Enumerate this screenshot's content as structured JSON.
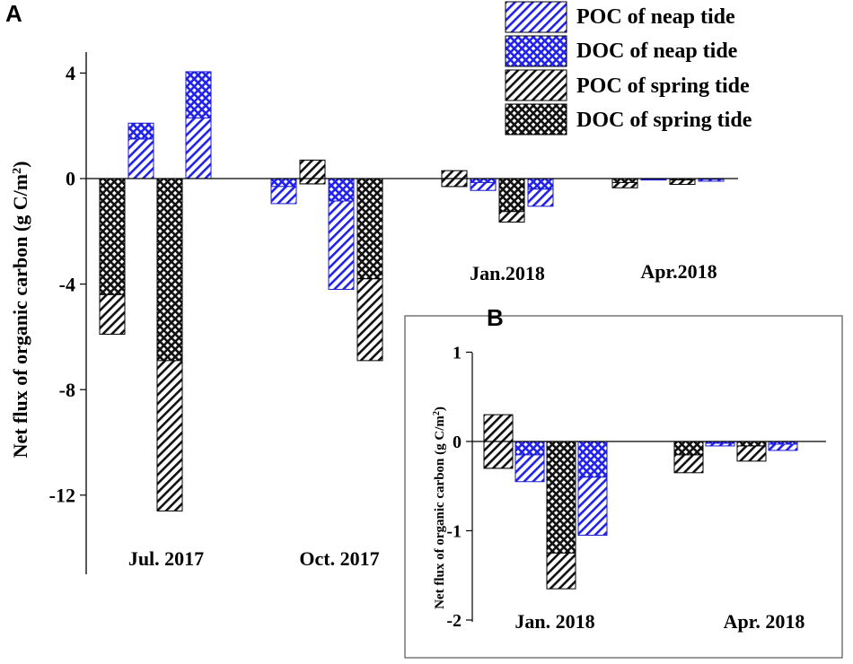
{
  "chart_data": [
    {
      "id": "A",
      "panel_label": "A",
      "type": "bar",
      "ylabel": "Net flux of organic carbon (g C/m",
      "ylabel_sup": "2",
      "ylabel_end": ")",
      "ylim": [
        -15,
        5
      ],
      "yticks": [
        4,
        0,
        -4,
        -8,
        -12
      ],
      "ytick_labels": [
        "4",
        "0",
        "-4",
        "-8",
        "-12"
      ],
      "legend_position": "top-right",
      "groups": [
        {
          "label": "Jul. 2017",
          "bars": [
            {
              "tide": "spring",
              "first": -4.4,
              "total": -5.9
            },
            {
              "tide": "neap",
              "first": 1.5,
              "total": 2.1
            },
            {
              "tide": "spring",
              "first": -6.9,
              "total": -12.6
            },
            {
              "tide": "neap",
              "first": 2.3,
              "total": 4.05
            }
          ]
        },
        {
          "label": "Oct. 2017",
          "bars": [
            {
              "tide": "neap",
              "first": -0.3,
              "total": -0.95
            },
            {
              "tide": "spring",
              "first": -0.2,
              "total": 0.7
            },
            {
              "tide": "neap",
              "first": -0.85,
              "total": -4.2
            },
            {
              "tide": "spring",
              "first": -3.8,
              "total": -6.9
            }
          ]
        },
        {
          "label": "Jan.2018",
          "bars": [
            {
              "tide": "spring",
              "first": -0.3,
              "total": 0.3
            },
            {
              "tide": "neap",
              "first": -0.15,
              "total": -0.45
            },
            {
              "tide": "spring",
              "first": -1.25,
              "total": -1.65
            },
            {
              "tide": "neap",
              "first": -0.4,
              "total": -1.05
            }
          ]
        },
        {
          "label": "Apr.2018",
          "bars": [
            {
              "tide": "spring",
              "first": -0.15,
              "total": -0.35
            },
            {
              "tide": "neap",
              "first": -0.02,
              "total": -0.05
            },
            {
              "tide": "spring",
              "first": -0.05,
              "total": -0.22
            },
            {
              "tide": "neap",
              "first": -0.03,
              "total": -0.1
            }
          ]
        }
      ]
    },
    {
      "id": "B",
      "panel_label": "B",
      "type": "bar",
      "ylabel": "Net flux of organic carbon (g C/m",
      "ylabel_sup": "2",
      "ylabel_end": ")",
      "ylim": [
        -2,
        1
      ],
      "yticks": [
        1,
        0,
        -1,
        -2
      ],
      "ytick_labels": [
        "1",
        "0",
        "-1",
        "-2"
      ],
      "groups": [
        {
          "label": "Jan. 2018",
          "bars": [
            {
              "tide": "spring",
              "first": -0.3,
              "total": 0.3
            },
            {
              "tide": "neap",
              "first": -0.15,
              "total": -0.45
            },
            {
              "tide": "spring",
              "first": -1.25,
              "total": -1.65
            },
            {
              "tide": "neap",
              "first": -0.4,
              "total": -1.05
            }
          ]
        },
        {
          "label": "Apr. 2018",
          "bars": [
            {
              "tide": "spring",
              "first": -0.15,
              "total": -0.35
            },
            {
              "tide": "neap",
              "first": -0.02,
              "total": -0.05
            },
            {
              "tide": "spring",
              "first": -0.05,
              "total": -0.22
            },
            {
              "tide": "neap",
              "first": -0.03,
              "total": -0.1
            }
          ]
        }
      ]
    }
  ],
  "legend": [
    {
      "label": "POC of neap tide",
      "pattern": "poc",
      "color": "#2222ee"
    },
    {
      "label": "DOC of neap tide",
      "pattern": "doc",
      "color": "#2222ee"
    },
    {
      "label": "POC of spring tide",
      "pattern": "poc",
      "color": "#111111"
    },
    {
      "label": "DOC of spring tide",
      "pattern": "doc",
      "color": "#111111"
    }
  ],
  "colors": {
    "neap": "#2222ee",
    "spring": "#111111"
  }
}
